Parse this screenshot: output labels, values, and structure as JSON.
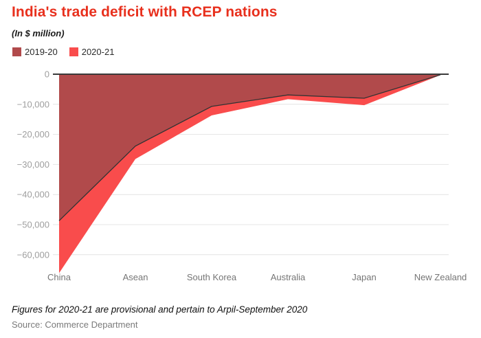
{
  "header": {
    "title": "India's trade deficit with RCEP nations",
    "subtitle": "(In $ million)",
    "title_color": "#e8301d"
  },
  "legend": {
    "items": [
      {
        "label": "2019-20",
        "color": "#b14a4b"
      },
      {
        "label": "2020-21",
        "color": "#f94c4c"
      }
    ]
  },
  "chart_data": {
    "type": "area",
    "stacked": true,
    "title": "India's trade deficit with RCEP nations",
    "units": "$ million",
    "categories": [
      "China",
      "Asean",
      "South Korea",
      "Australia",
      "Japan",
      "New Zealand"
    ],
    "series": [
      {
        "name": "2019-20",
        "color": "#b14a4b",
        "values": [
          -48700,
          -23900,
          -10700,
          -6900,
          -8000,
          -200
        ]
      },
      {
        "name": "2020-21",
        "color": "#f94c4c",
        "values": [
          -17400,
          -4300,
          -3000,
          -1400,
          -2300,
          -100
        ]
      }
    ],
    "stacked_totals": [
      -66100,
      -28200,
      -13700,
      -8300,
      -10300,
      -300
    ],
    "xlabel": "",
    "ylabel": "",
    "ylim": [
      -66500,
      0
    ],
    "y_ticks": [
      0,
      -10000,
      -20000,
      -30000,
      -40000,
      -50000,
      -60000
    ],
    "y_tick_labels": [
      "0",
      "−10,000",
      "−20,000",
      "−30,000",
      "−40,000",
      "−50,000",
      "−60,000"
    ],
    "grid": "horizontal",
    "legend_position": "top-left",
    "line_color": "#333333",
    "zero_axis_color": "#3a3a3a",
    "gridline_color": "#e4e4e4",
    "x_label_color": "#757575",
    "y_label_color": "#9e9e9e"
  },
  "footer": {
    "note": "Figures for 2020-21 are provisional and pertain to Arpil-September 2020",
    "source": "Source: Commerce Department"
  }
}
